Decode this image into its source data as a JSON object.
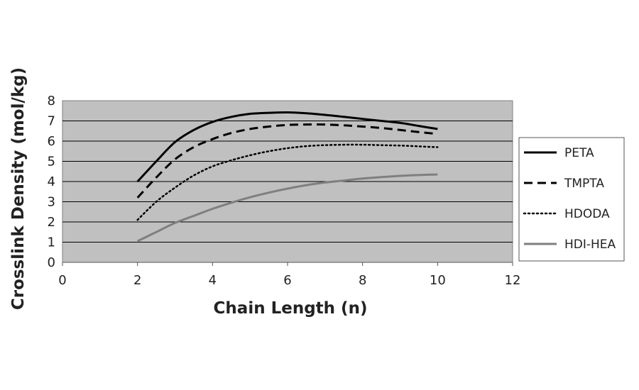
{
  "chart_data": {
    "type": "line",
    "xlabel": "Chain Length (n)",
    "ylabel": "Crosslink Density (mol/kg)",
    "xlim": [
      0,
      12
    ],
    "ylim": [
      0,
      8
    ],
    "x_ticks": [
      "0",
      "2",
      "4",
      "6",
      "8",
      "10",
      "12"
    ],
    "y_ticks": [
      "0",
      "1",
      "2",
      "3",
      "4",
      "5",
      "6",
      "7",
      "8"
    ],
    "grid": "horizontal",
    "plot_background": "#c0c0c0",
    "legend_position": "right",
    "series": [
      {
        "name": "PETA",
        "color": "#000000",
        "dash": "solid",
        "x": [
          2,
          2.5,
          3,
          3.5,
          4,
          4.5,
          5,
          5.5,
          6,
          6.5,
          7,
          7.5,
          8,
          8.5,
          9,
          9.5,
          10
        ],
        "y": [
          4.0,
          5.0,
          5.95,
          6.55,
          6.95,
          7.2,
          7.35,
          7.4,
          7.42,
          7.38,
          7.3,
          7.2,
          7.1,
          7.0,
          6.9,
          6.75,
          6.6
        ]
      },
      {
        "name": "TMPTA",
        "color": "#000000",
        "dash": "dashed",
        "x": [
          2,
          2.5,
          3,
          3.5,
          4,
          4.5,
          5,
          5.5,
          6,
          6.5,
          7,
          7.5,
          8,
          8.5,
          9,
          9.5,
          10
        ],
        "y": [
          3.2,
          4.2,
          5.1,
          5.7,
          6.1,
          6.4,
          6.6,
          6.72,
          6.8,
          6.82,
          6.82,
          6.78,
          6.72,
          6.65,
          6.55,
          6.45,
          6.35
        ]
      },
      {
        "name": "HDODA",
        "color": "#000000",
        "dash": "dotted",
        "x": [
          2,
          2.5,
          3,
          3.5,
          4,
          4.5,
          5,
          5.5,
          6,
          6.5,
          7,
          7.5,
          8,
          8.5,
          9,
          9.5,
          10
        ],
        "y": [
          2.1,
          3.0,
          3.7,
          4.3,
          4.75,
          5.05,
          5.3,
          5.5,
          5.65,
          5.75,
          5.8,
          5.82,
          5.82,
          5.8,
          5.78,
          5.74,
          5.7
        ]
      },
      {
        "name": "HDI-HEA",
        "color": "#7f7f7f",
        "dash": "solid",
        "x": [
          2,
          2.5,
          3,
          3.5,
          4,
          4.5,
          5,
          5.5,
          6,
          6.5,
          7,
          7.5,
          8,
          8.5,
          9,
          9.5,
          10
        ],
        "y": [
          1.05,
          1.5,
          1.95,
          2.3,
          2.65,
          2.95,
          3.22,
          3.45,
          3.65,
          3.82,
          3.95,
          4.05,
          4.15,
          4.22,
          4.28,
          4.32,
          4.35
        ]
      }
    ]
  }
}
